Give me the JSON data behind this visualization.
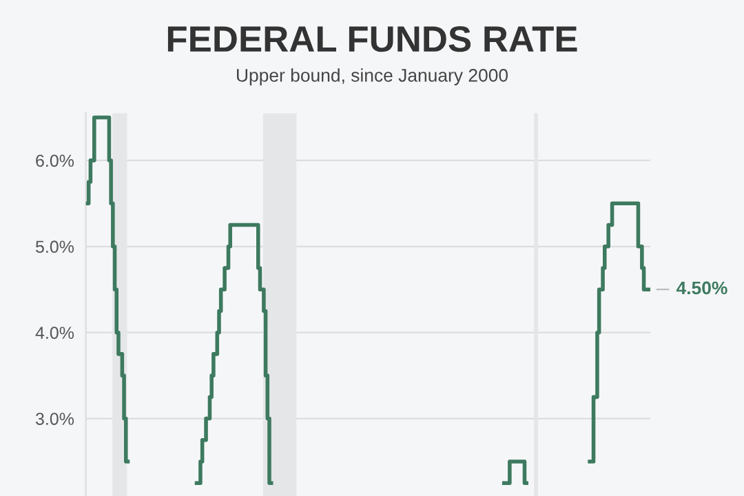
{
  "chart_data": {
    "type": "step",
    "title": "FEDERAL FUNDS RATE",
    "subtitle": "Upper bound, since January 2000",
    "categories": [
      null,
      null,
      null,
      null,
      null,
      null,
      null,
      null,
      null,
      null,
      null,
      null,
      null,
      null,
      null,
      null,
      null,
      null,
      null,
      null,
      null,
      null,
      null,
      null,
      null,
      null,
      null,
      null,
      null,
      null,
      null,
      null,
      null,
      null,
      null,
      null,
      null,
      null,
      null,
      null,
      null,
      null,
      null,
      null,
      null,
      null,
      null,
      null,
      null,
      null,
      null,
      null,
      null,
      null,
      null,
      null,
      null,
      null,
      null,
      null,
      null,
      null,
      null,
      null,
      null,
      null,
      null,
      null,
      null,
      null,
      null,
      null,
      null,
      null,
      null,
      null,
      null,
      null,
      null,
      null,
      null,
      null,
      null,
      null,
      null,
      null,
      null,
      null,
      null,
      null,
      null,
      null,
      null,
      null,
      null,
      null,
      null,
      null,
      null,
      null,
      null,
      null,
      null,
      null,
      null,
      null,
      null,
      null,
      null,
      null,
      null,
      null,
      null,
      null,
      null,
      null,
      null,
      null,
      null,
      null,
      null,
      null,
      null,
      null,
      null,
      null,
      null,
      null,
      null,
      null,
      null,
      null,
      null,
      null,
      null,
      null,
      null,
      null,
      null,
      null,
      null,
      null,
      null,
      null,
      null,
      null,
      null,
      null,
      null,
      null,
      null,
      null,
      null,
      null,
      null,
      null,
      null,
      null,
      null,
      null,
      null,
      null,
      null,
      null,
      null,
      null,
      null,
      null,
      null,
      null,
      null,
      null,
      null,
      null,
      null,
      null,
      null,
      null,
      null,
      null,
      null,
      null,
      null,
      null,
      null,
      null,
      null,
      null,
      null,
      null,
      null,
      null,
      null,
      null,
      null,
      null,
      null,
      null,
      null,
      null,
      null,
      null,
      null,
      null,
      null,
      null,
      null,
      null,
      null,
      null,
      null,
      null,
      null,
      null,
      null,
      null,
      null,
      null,
      null,
      null,
      null,
      null,
      null,
      null,
      null,
      null,
      null,
      null,
      null,
      null,
      null,
      null,
      null,
      null,
      null,
      null,
      null,
      null,
      null,
      null,
      null,
      null,
      null,
      null,
      null,
      null,
      null,
      null,
      null,
      null,
      null,
      null,
      null,
      null,
      null,
      null,
      null,
      null,
      null,
      null,
      null,
      null,
      null,
      null,
      null,
      null,
      null,
      null,
      null,
      null,
      null,
      null,
      null,
      null,
      null,
      null,
      null,
      null,
      null,
      null,
      null,
      null,
      null,
      null,
      null,
      null,
      null,
      null,
      null,
      null,
      null,
      null,
      null,
      null,
      null,
      null,
      null,
      null,
      null,
      null,
      null,
      null,
      null
    ],
    "series": [
      {
        "color": "#3d7a5f",
        "values": [
          5.5,
          5.75,
          6.0,
          6.0,
          6.5,
          6.5,
          6.5,
          6.5,
          6.5,
          6.5,
          6.5,
          6.5,
          6.0,
          5.5,
          5.0,
          4.5,
          4.0,
          3.75,
          3.75,
          3.5,
          3.0,
          2.5,
          null,
          null,
          null,
          null,
          null,
          null,
          null,
          null,
          null,
          null,
          null,
          null,
          null,
          null,
          null,
          null,
          null,
          null,
          null,
          null,
          null,
          null,
          null,
          null,
          null,
          null,
          null,
          null,
          null,
          null,
          null,
          null,
          null,
          null,
          null,
          null,
          null,
          2.25,
          2.25,
          2.5,
          2.75,
          2.75,
          3.0,
          3.0,
          3.25,
          3.5,
          3.75,
          3.75,
          4.0,
          4.25,
          4.5,
          4.5,
          4.75,
          4.75,
          5.0,
          5.25,
          5.25,
          5.25,
          5.25,
          5.25,
          5.25,
          5.25,
          5.25,
          5.25,
          5.25,
          5.25,
          5.25,
          5.25,
          5.25,
          5.25,
          4.75,
          4.5,
          4.5,
          4.25,
          3.5,
          3.0,
          2.25,
          null,
          null,
          null,
          null,
          null,
          null,
          null,
          null,
          null,
          null,
          null,
          null,
          null,
          null,
          null,
          null,
          null,
          null,
          null,
          null,
          null,
          null,
          null,
          null,
          null,
          null,
          null,
          null,
          null,
          null,
          null,
          null,
          null,
          null,
          null,
          null,
          null,
          null,
          null,
          null,
          null,
          null,
          null,
          null,
          null,
          null,
          null,
          null,
          null,
          null,
          null,
          null,
          null,
          null,
          null,
          null,
          null,
          null,
          null,
          null,
          null,
          null,
          null,
          null,
          null,
          null,
          null,
          null,
          null,
          null,
          null,
          null,
          null,
          null,
          null,
          null,
          null,
          null,
          null,
          null,
          null,
          null,
          null,
          null,
          null,
          null,
          null,
          null,
          null,
          null,
          null,
          null,
          null,
          null,
          null,
          null,
          null,
          null,
          null,
          null,
          null,
          null,
          null,
          null,
          null,
          null,
          null,
          null,
          null,
          null,
          null,
          null,
          null,
          null,
          null,
          null,
          null,
          null,
          null,
          null,
          null,
          null,
          null,
          null,
          null,
          2.25,
          2.25,
          2.25,
          2.5,
          2.5,
          2.5,
          2.5,
          2.5,
          2.5,
          2.5,
          2.5,
          2.25,
          null,
          null,
          null,
          null,
          null,
          null,
          null,
          null,
          null,
          null,
          null,
          null,
          null,
          null,
          null,
          null,
          null,
          null,
          null,
          null,
          null,
          null,
          null,
          null,
          null,
          null,
          null,
          null,
          null,
          null,
          null,
          null,
          null,
          null,
          2.5,
          2.5,
          3.25,
          3.25,
          4.0,
          4.5,
          4.5,
          4.75,
          5.0,
          5.0,
          5.25,
          5.25,
          5.5,
          5.5,
          5.5,
          5.5,
          5.5,
          5.5,
          5.5,
          5.5,
          5.5,
          5.5,
          5.5,
          5.5,
          5.5,
          5.5,
          5.0,
          5.0,
          4.75,
          4.5,
          4.5,
          4.5,
          4.5
        ]
      }
    ],
    "ylim": [
      2.1,
      6.55
    ],
    "yticks": [
      {
        "value": 3,
        "label": "3.0%"
      },
      {
        "value": 4,
        "label": "4.0%"
      },
      {
        "value": 5,
        "label": "5.0%"
      },
      {
        "value": 6,
        "label": "6.0%"
      }
    ],
    "tick_labels": "y",
    "grid": "y",
    "annotations": [
      "4.50%"
    ]
  }
}
